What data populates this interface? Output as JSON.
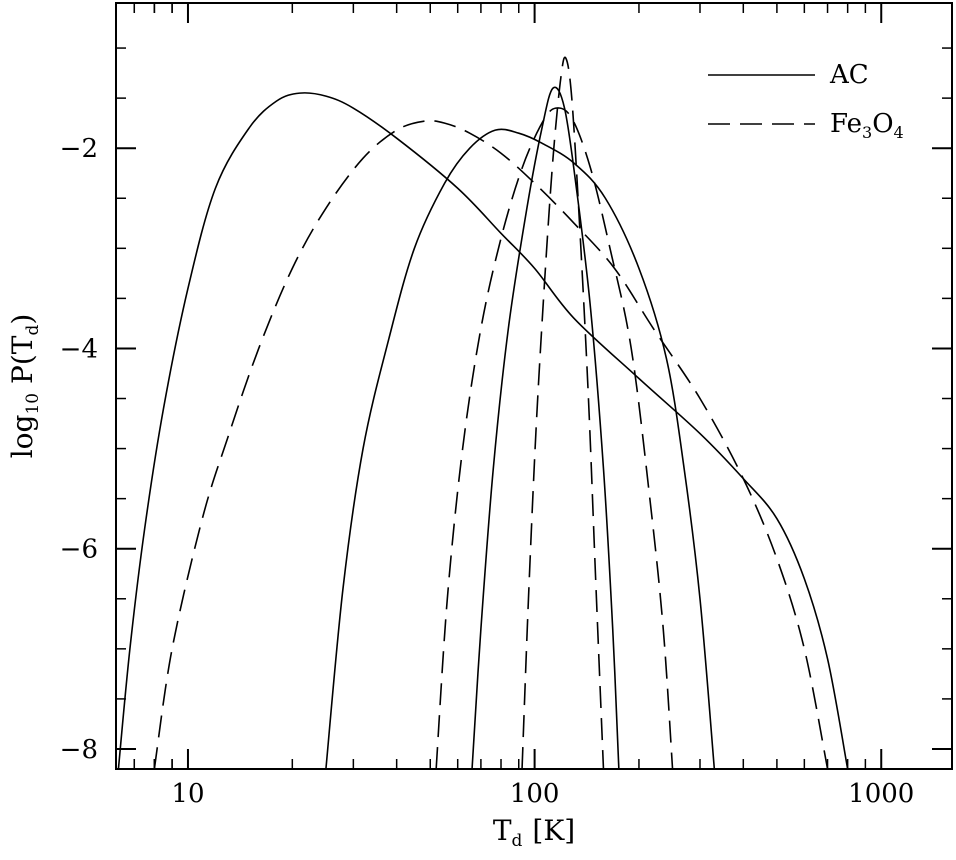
{
  "chart_data": {
    "type": "line",
    "title": "",
    "xlabel": "T",
    "xlabel_sub": "d",
    "xlabel_unit": "[K]",
    "ylabel": "log",
    "ylabel_sub": "10",
    "ylabel_rest_open": " P(T",
    "ylabel_rest_sub": "d",
    "ylabel_rest_close": ")",
    "xscale": "log",
    "xlim": [
      6.2,
      1600
    ],
    "ylim": [
      -8.2,
      -0.55
    ],
    "x_ticks": [
      10,
      100,
      1000
    ],
    "x_tick_labels": [
      "10",
      "100",
      "1000"
    ],
    "y_ticks": [
      -8,
      -6,
      -4,
      -2
    ],
    "y_tick_labels": [
      "−8",
      "−6",
      "−4",
      "−2"
    ],
    "grid": false,
    "legend_position": "top-right",
    "legend": [
      {
        "label": "AC",
        "style": "solid"
      },
      {
        "label_main": "Fe",
        "label_sub1": "3",
        "label_mid": "O",
        "label_sub2": "4",
        "style": "dashed"
      }
    ],
    "series": [
      {
        "material": "AC",
        "style": "solid",
        "points": [
          [
            6.3,
            -8.2
          ],
          [
            6.8,
            -7.0
          ],
          [
            7.5,
            -5.8
          ],
          [
            8.5,
            -4.6
          ],
          [
            10,
            -3.4
          ],
          [
            12,
            -2.4
          ],
          [
            15,
            -1.8
          ],
          [
            18,
            -1.53
          ],
          [
            21,
            -1.45
          ],
          [
            25,
            -1.48
          ],
          [
            30,
            -1.6
          ],
          [
            40,
            -1.9
          ],
          [
            60,
            -2.4
          ],
          [
            80,
            -2.85
          ],
          [
            100,
            -3.2
          ],
          [
            130,
            -3.7
          ],
          [
            200,
            -4.3
          ],
          [
            300,
            -4.85
          ],
          [
            400,
            -5.3
          ],
          [
            500,
            -5.7
          ],
          [
            600,
            -6.3
          ],
          [
            700,
            -7.1
          ],
          [
            800,
            -8.2
          ]
        ]
      },
      {
        "material": "Fe3O4",
        "style": "dashed",
        "points": [
          [
            8.0,
            -8.2
          ],
          [
            9,
            -7.0
          ],
          [
            11,
            -5.7
          ],
          [
            13,
            -4.9
          ],
          [
            16,
            -4.0
          ],
          [
            20,
            -3.2
          ],
          [
            25,
            -2.6
          ],
          [
            32,
            -2.1
          ],
          [
            40,
            -1.82
          ],
          [
            48,
            -1.73
          ],
          [
            55,
            -1.75
          ],
          [
            65,
            -1.85
          ],
          [
            80,
            -2.05
          ],
          [
            100,
            -2.35
          ],
          [
            130,
            -2.75
          ],
          [
            170,
            -3.2
          ],
          [
            220,
            -3.8
          ],
          [
            300,
            -4.5
          ],
          [
            400,
            -5.3
          ],
          [
            500,
            -6.1
          ],
          [
            600,
            -7.0
          ],
          [
            700,
            -8.2
          ]
        ]
      },
      {
        "material": "AC",
        "style": "solid",
        "points": [
          [
            25,
            -8.2
          ],
          [
            28,
            -6.4
          ],
          [
            32,
            -5.0
          ],
          [
            38,
            -3.9
          ],
          [
            45,
            -3.0
          ],
          [
            55,
            -2.35
          ],
          [
            65,
            -2.0
          ],
          [
            77,
            -1.82
          ],
          [
            90,
            -1.85
          ],
          [
            105,
            -1.95
          ],
          [
            130,
            -2.15
          ],
          [
            160,
            -2.5
          ],
          [
            200,
            -3.2
          ],
          [
            240,
            -4.1
          ],
          [
            270,
            -5.2
          ],
          [
            300,
            -6.5
          ],
          [
            330,
            -8.2
          ]
        ]
      },
      {
        "material": "Fe3O4",
        "style": "dashed",
        "points": [
          [
            52,
            -8.2
          ],
          [
            56,
            -6.5
          ],
          [
            62,
            -5.0
          ],
          [
            70,
            -3.8
          ],
          [
            80,
            -2.9
          ],
          [
            92,
            -2.2
          ],
          [
            105,
            -1.75
          ],
          [
            115,
            -1.6
          ],
          [
            128,
            -1.7
          ],
          [
            145,
            -2.2
          ],
          [
            165,
            -3.0
          ],
          [
            190,
            -4.0
          ],
          [
            215,
            -5.5
          ],
          [
            235,
            -6.8
          ],
          [
            250,
            -8.2
          ]
        ]
      },
      {
        "material": "AC",
        "style": "solid",
        "points": [
          [
            66,
            -8.2
          ],
          [
            70,
            -6.8
          ],
          [
            76,
            -5.2
          ],
          [
            84,
            -3.8
          ],
          [
            95,
            -2.6
          ],
          [
            105,
            -1.8
          ],
          [
            113,
            -1.4
          ],
          [
            122,
            -1.6
          ],
          [
            132,
            -2.4
          ],
          [
            145,
            -3.6
          ],
          [
            158,
            -5.2
          ],
          [
            168,
            -6.8
          ],
          [
            175,
            -8.2
          ]
        ]
      },
      {
        "material": "Fe3O4",
        "style": "dashed",
        "points": [
          [
            92,
            -8.2
          ],
          [
            96,
            -6.5
          ],
          [
            101,
            -4.8
          ],
          [
            107,
            -3.3
          ],
          [
            113,
            -2.1
          ],
          [
            119,
            -1.3
          ],
          [
            123,
            -1.1
          ],
          [
            128,
            -1.5
          ],
          [
            135,
            -2.8
          ],
          [
            143,
            -4.5
          ],
          [
            150,
            -6.3
          ],
          [
            158,
            -8.2
          ]
        ]
      }
    ]
  }
}
